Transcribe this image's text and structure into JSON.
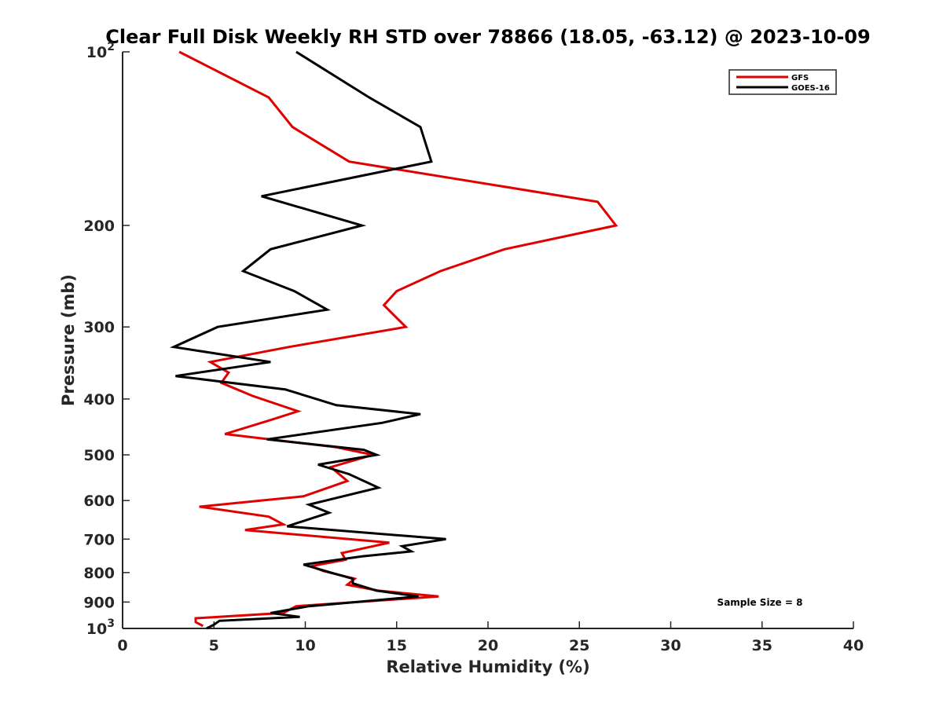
{
  "chart_data": {
    "type": "line",
    "title": "Clear Full Disk Weekly RH STD over 78866 (18.05, -63.12) @ 2023-10-09",
    "xlabel": "Relative Humidity (%)",
    "ylabel": "Pressure (mb)",
    "xlim": [
      0,
      40
    ],
    "ylim": [
      100,
      1000
    ],
    "y_scale": "log",
    "y_reversed": true,
    "grid": false,
    "legend_position": "top-right",
    "x_ticks": [
      0,
      5,
      10,
      15,
      20,
      25,
      30,
      35,
      40
    ],
    "x_tick_labels": [
      "0",
      "5",
      "10",
      "15",
      "20",
      "25",
      "30",
      "35",
      "40"
    ],
    "y_ticks": [
      100,
      200,
      300,
      400,
      500,
      600,
      700,
      800,
      900,
      1000
    ],
    "y_tick_labels": [
      {
        "base": "10",
        "exp": "2"
      },
      {
        "base": "200",
        "exp": ""
      },
      {
        "base": "300",
        "exp": ""
      },
      {
        "base": "400",
        "exp": ""
      },
      {
        "base": "500",
        "exp": ""
      },
      {
        "base": "600",
        "exp": ""
      },
      {
        "base": "700",
        "exp": ""
      },
      {
        "base": "800",
        "exp": ""
      },
      {
        "base": "900",
        "exp": ""
      },
      {
        "base": "10",
        "exp": "3"
      }
    ],
    "annotation": "Sample Size = 8",
    "series": [
      {
        "name": "GFS",
        "color": "#e00000",
        "points": [
          [
            3.1,
            100
          ],
          [
            8.0,
            120
          ],
          [
            9.3,
            135
          ],
          [
            12.4,
            155
          ],
          [
            26.0,
            182
          ],
          [
            27.0,
            200
          ],
          [
            20.9,
            220
          ],
          [
            17.4,
            240
          ],
          [
            15.0,
            260
          ],
          [
            14.3,
            275
          ],
          [
            15.5,
            300
          ],
          [
            9.1,
            325
          ],
          [
            4.8,
            345
          ],
          [
            5.8,
            360
          ],
          [
            5.4,
            375
          ],
          [
            7.1,
            395
          ],
          [
            9.6,
            420
          ],
          [
            8.1,
            435
          ],
          [
            5.6,
            460
          ],
          [
            11.7,
            485
          ],
          [
            13.7,
            500
          ],
          [
            11.4,
            525
          ],
          [
            12.3,
            555
          ],
          [
            9.9,
            590
          ],
          [
            4.2,
            615
          ],
          [
            8.0,
            640
          ],
          [
            8.8,
            660
          ],
          [
            6.7,
            675
          ],
          [
            14.6,
            710
          ],
          [
            12.0,
            740
          ],
          [
            12.2,
            760
          ],
          [
            10.3,
            780
          ],
          [
            11.0,
            795
          ],
          [
            12.7,
            820
          ],
          [
            12.3,
            840
          ],
          [
            14.0,
            860
          ],
          [
            17.3,
            880
          ],
          [
            9.5,
            915
          ],
          [
            8.8,
            940
          ],
          [
            4.0,
            960
          ],
          [
            4.0,
            975
          ],
          [
            4.4,
            990
          ]
        ]
      },
      {
        "name": "GOES-16",
        "color": "#000000",
        "points": [
          [
            9.5,
            100
          ],
          [
            13.5,
            120
          ],
          [
            16.3,
            135
          ],
          [
            16.9,
            155
          ],
          [
            7.6,
            178
          ],
          [
            13.1,
            200
          ],
          [
            8.1,
            220
          ],
          [
            6.6,
            240
          ],
          [
            9.4,
            260
          ],
          [
            11.2,
            280
          ],
          [
            5.2,
            300
          ],
          [
            2.8,
            325
          ],
          [
            8.1,
            345
          ],
          [
            2.9,
            365
          ],
          [
            8.9,
            385
          ],
          [
            11.7,
            410
          ],
          [
            16.3,
            425
          ],
          [
            14.2,
            440
          ],
          [
            7.9,
            470
          ],
          [
            13.2,
            490
          ],
          [
            13.9,
            500
          ],
          [
            10.7,
            520
          ],
          [
            12.4,
            540
          ],
          [
            14.0,
            570
          ],
          [
            10.2,
            610
          ],
          [
            11.3,
            630
          ],
          [
            9.0,
            665
          ],
          [
            17.7,
            700
          ],
          [
            15.3,
            720
          ],
          [
            15.8,
            735
          ],
          [
            13.1,
            750
          ],
          [
            9.9,
            775
          ],
          [
            11.4,
            800
          ],
          [
            12.6,
            820
          ],
          [
            12.6,
            835
          ],
          [
            13.9,
            860
          ],
          [
            16.2,
            880
          ],
          [
            10.2,
            915
          ],
          [
            8.1,
            940
          ],
          [
            9.7,
            955
          ],
          [
            5.3,
            970
          ],
          [
            5.0,
            985
          ],
          [
            4.6,
            1000
          ]
        ]
      }
    ]
  }
}
